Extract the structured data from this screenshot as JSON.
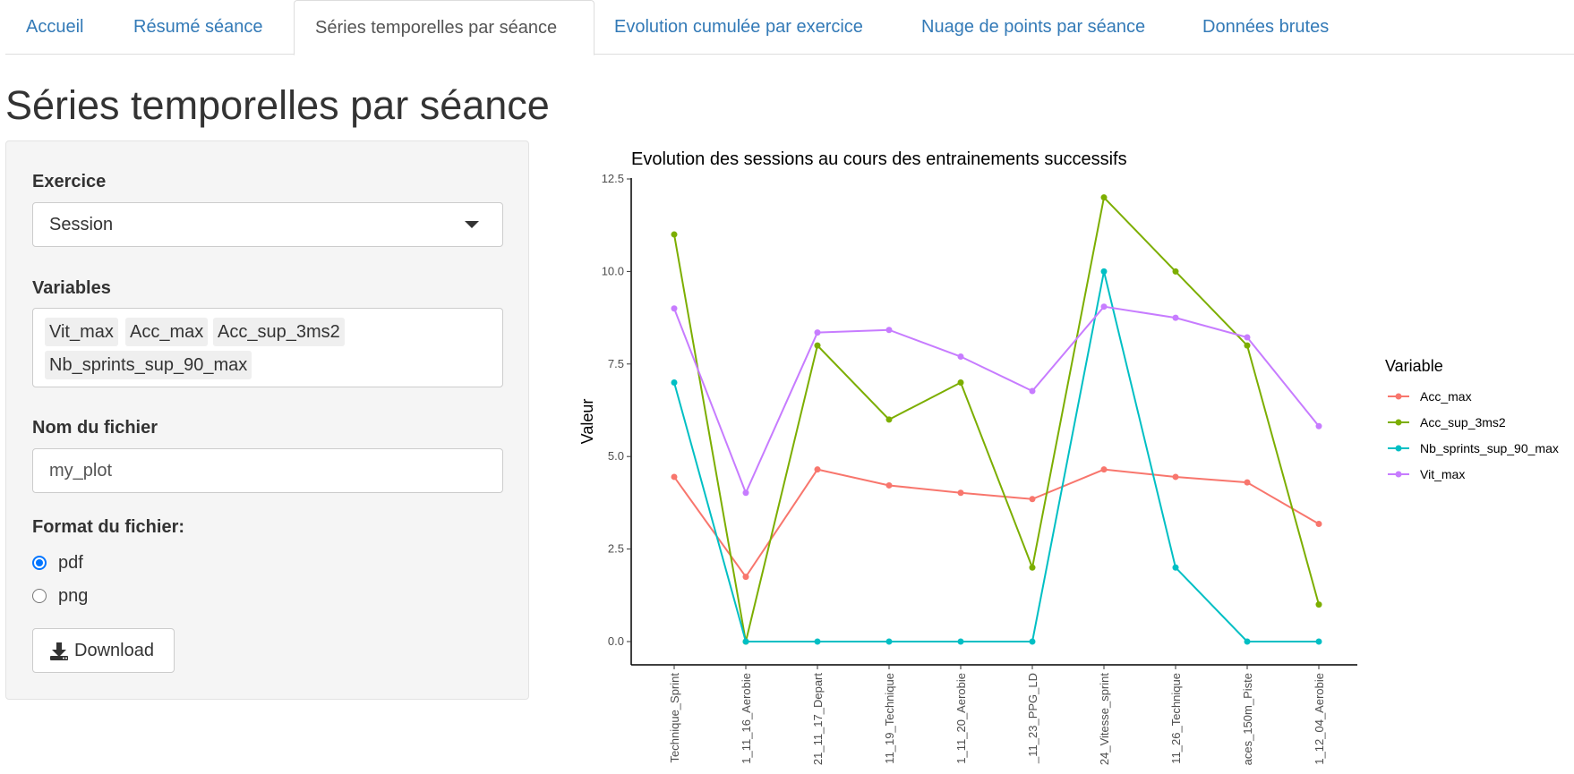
{
  "tabs": [
    {
      "label": "Accueil",
      "active": false
    },
    {
      "label": "Résumé séance",
      "active": false
    },
    {
      "label": "Séries temporelles par séance",
      "active": true
    },
    {
      "label": "Evolution cumulée par exercice",
      "active": false
    },
    {
      "label": "Nuage de points par séance",
      "active": false
    },
    {
      "label": "Données brutes",
      "active": false
    }
  ],
  "page_title": "Séries temporelles par séance",
  "sidebar": {
    "exercise_label": "Exercice",
    "exercise_value": "Session",
    "variables_label": "Variables",
    "variables_selected": [
      "Vit_max",
      "Acc_max",
      "Acc_sup_3ms2",
      "Nb_sprints_sup_90_max"
    ],
    "filename_label": "Nom du fichier",
    "filename_value": "my_plot",
    "format_label": "Format du fichier:",
    "format_options": [
      "pdf",
      "png"
    ],
    "format_selected": "pdf",
    "download_label": "Download",
    "download_icon": "download-icon"
  },
  "chart_data": {
    "type": "line",
    "title": "Evolution des sessions au cours des entrainements successifs",
    "xlabel": "",
    "ylabel": "Valeur",
    "ylim": [
      0,
      12.5
    ],
    "yticks": [
      "0.0",
      "2.5",
      "5.0",
      "7.5",
      "10.0",
      "12.5"
    ],
    "categories": [
      "Technique_Sprint",
      "1_11_16_Aerobie",
      "21_11_17_Depart",
      "11_19_Technique",
      "1_11_20_Aerobie",
      "_11_23_PPG_LD",
      "24_Vitesse_sprint",
      "11_26_Technique",
      "aces_150m_Piste",
      "1_12_04_Aerobie"
    ],
    "legend_title": "Variable",
    "legend_position": "right",
    "series": [
      {
        "name": "Acc_max",
        "color": "#f8766d",
        "values": [
          4.45,
          1.75,
          4.65,
          4.22,
          4.02,
          3.85,
          4.65,
          4.45,
          4.3,
          3.18
        ]
      },
      {
        "name": "Acc_sup_3ms2",
        "color": "#7cae00",
        "values": [
          11,
          0,
          8,
          6,
          7,
          2,
          12,
          10,
          8,
          1
        ]
      },
      {
        "name": "Nb_sprints_sup_90_max",
        "color": "#00bfc4",
        "values": [
          7,
          0,
          0,
          0,
          0,
          0,
          10,
          2,
          0,
          0
        ]
      },
      {
        "name": "Vit_max",
        "color": "#c77cff",
        "values": [
          9.0,
          4.02,
          8.35,
          8.42,
          7.7,
          6.77,
          9.05,
          8.75,
          8.22,
          5.82
        ]
      }
    ]
  }
}
